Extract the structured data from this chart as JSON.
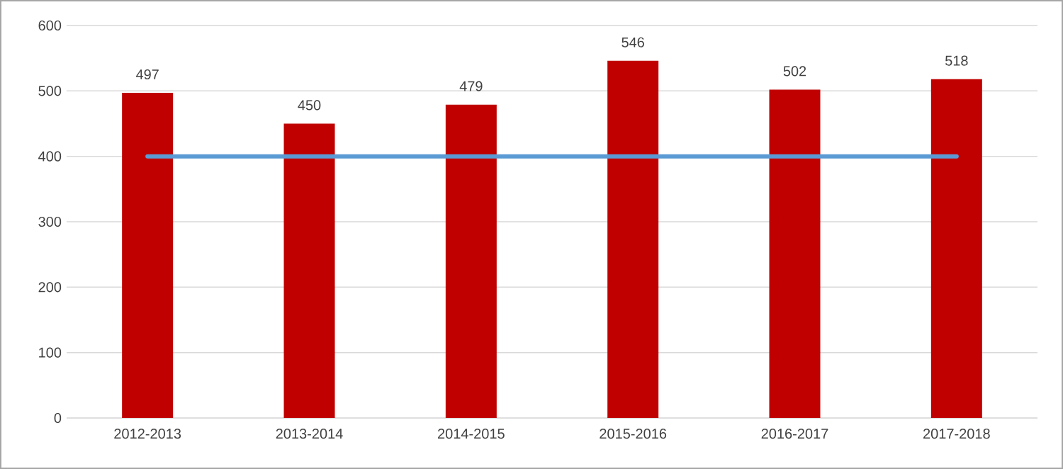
{
  "chart_data": {
    "type": "bar",
    "categories": [
      "2012-2013",
      "2013-2014",
      "2014-2015",
      "2015-2016",
      "2016-2017",
      "2017-2018"
    ],
    "series": [
      {
        "color": "#c00000",
        "values": [
          497,
          450,
          479,
          546,
          502,
          518
        ],
        "value_labels": [
          "497",
          "450",
          "479",
          "546",
          "502",
          "518"
        ]
      },
      {
        "type": "line",
        "color": "#5b9bd5",
        "values": [
          400,
          400,
          400,
          400,
          400,
          400
        ]
      }
    ],
    "ylim": [
      0,
      600
    ],
    "yticks": [
      0,
      100,
      200,
      300,
      400,
      500,
      600
    ],
    "grid": "y"
  }
}
